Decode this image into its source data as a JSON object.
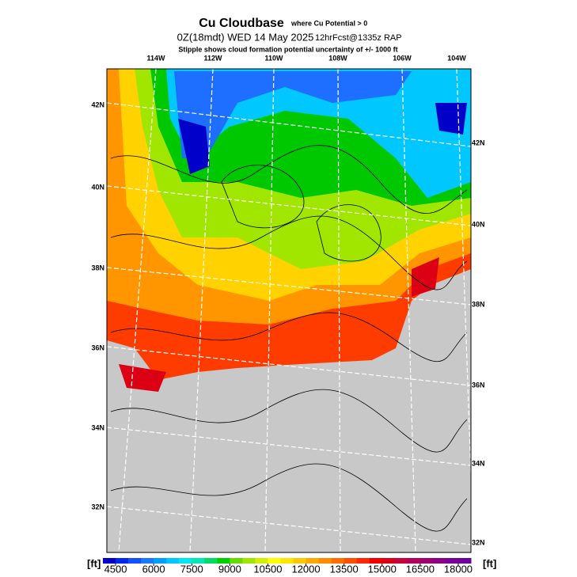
{
  "header": {
    "title": "Cu Cloudbase",
    "title_note": "where Cu Potential > 0",
    "valid": "0Z(18mdt) WED 14 May 2025",
    "forecast": "12hrFcst@1335z RAP",
    "subtitle": "Stipple shows cloud formation potential uncertainty of +/-  1000 ft"
  },
  "map": {
    "lon_labels": [
      "114W",
      "112W",
      "110W",
      "108W",
      "106W",
      "104W"
    ],
    "lat_labels_left": [
      "42N",
      "40N",
      "38N",
      "36N",
      "34N",
      "32N"
    ],
    "lat_labels_right": [
      "42N",
      "40N",
      "38N",
      "36N",
      "34N",
      "32N"
    ]
  },
  "colorbar": {
    "unit_left": "[ft]",
    "unit_right": "[ft]",
    "lim": [
      4000,
      18500
    ],
    "ticks": [
      4500,
      6000,
      7500,
      9000,
      10500,
      12000,
      13500,
      15000,
      16500,
      18000
    ],
    "colors": [
      "#0000c8",
      "#0028f0",
      "#1450ff",
      "#1e78ff",
      "#00a0ff",
      "#00c8ff",
      "#00e6f0",
      "#00e6b4",
      "#00dc64",
      "#00d200",
      "#64dc00",
      "#a0e600",
      "#d2f000",
      "#ffff00",
      "#ffe600",
      "#ffc800",
      "#ffaa00",
      "#ff8c00",
      "#ff6e00",
      "#ff5000",
      "#ff2800",
      "#f00000",
      "#dc0014",
      "#c8003c",
      "#b4005a",
      "#a0006e",
      "#8c0082",
      "#780096",
      "#6e00a0"
    ]
  }
}
